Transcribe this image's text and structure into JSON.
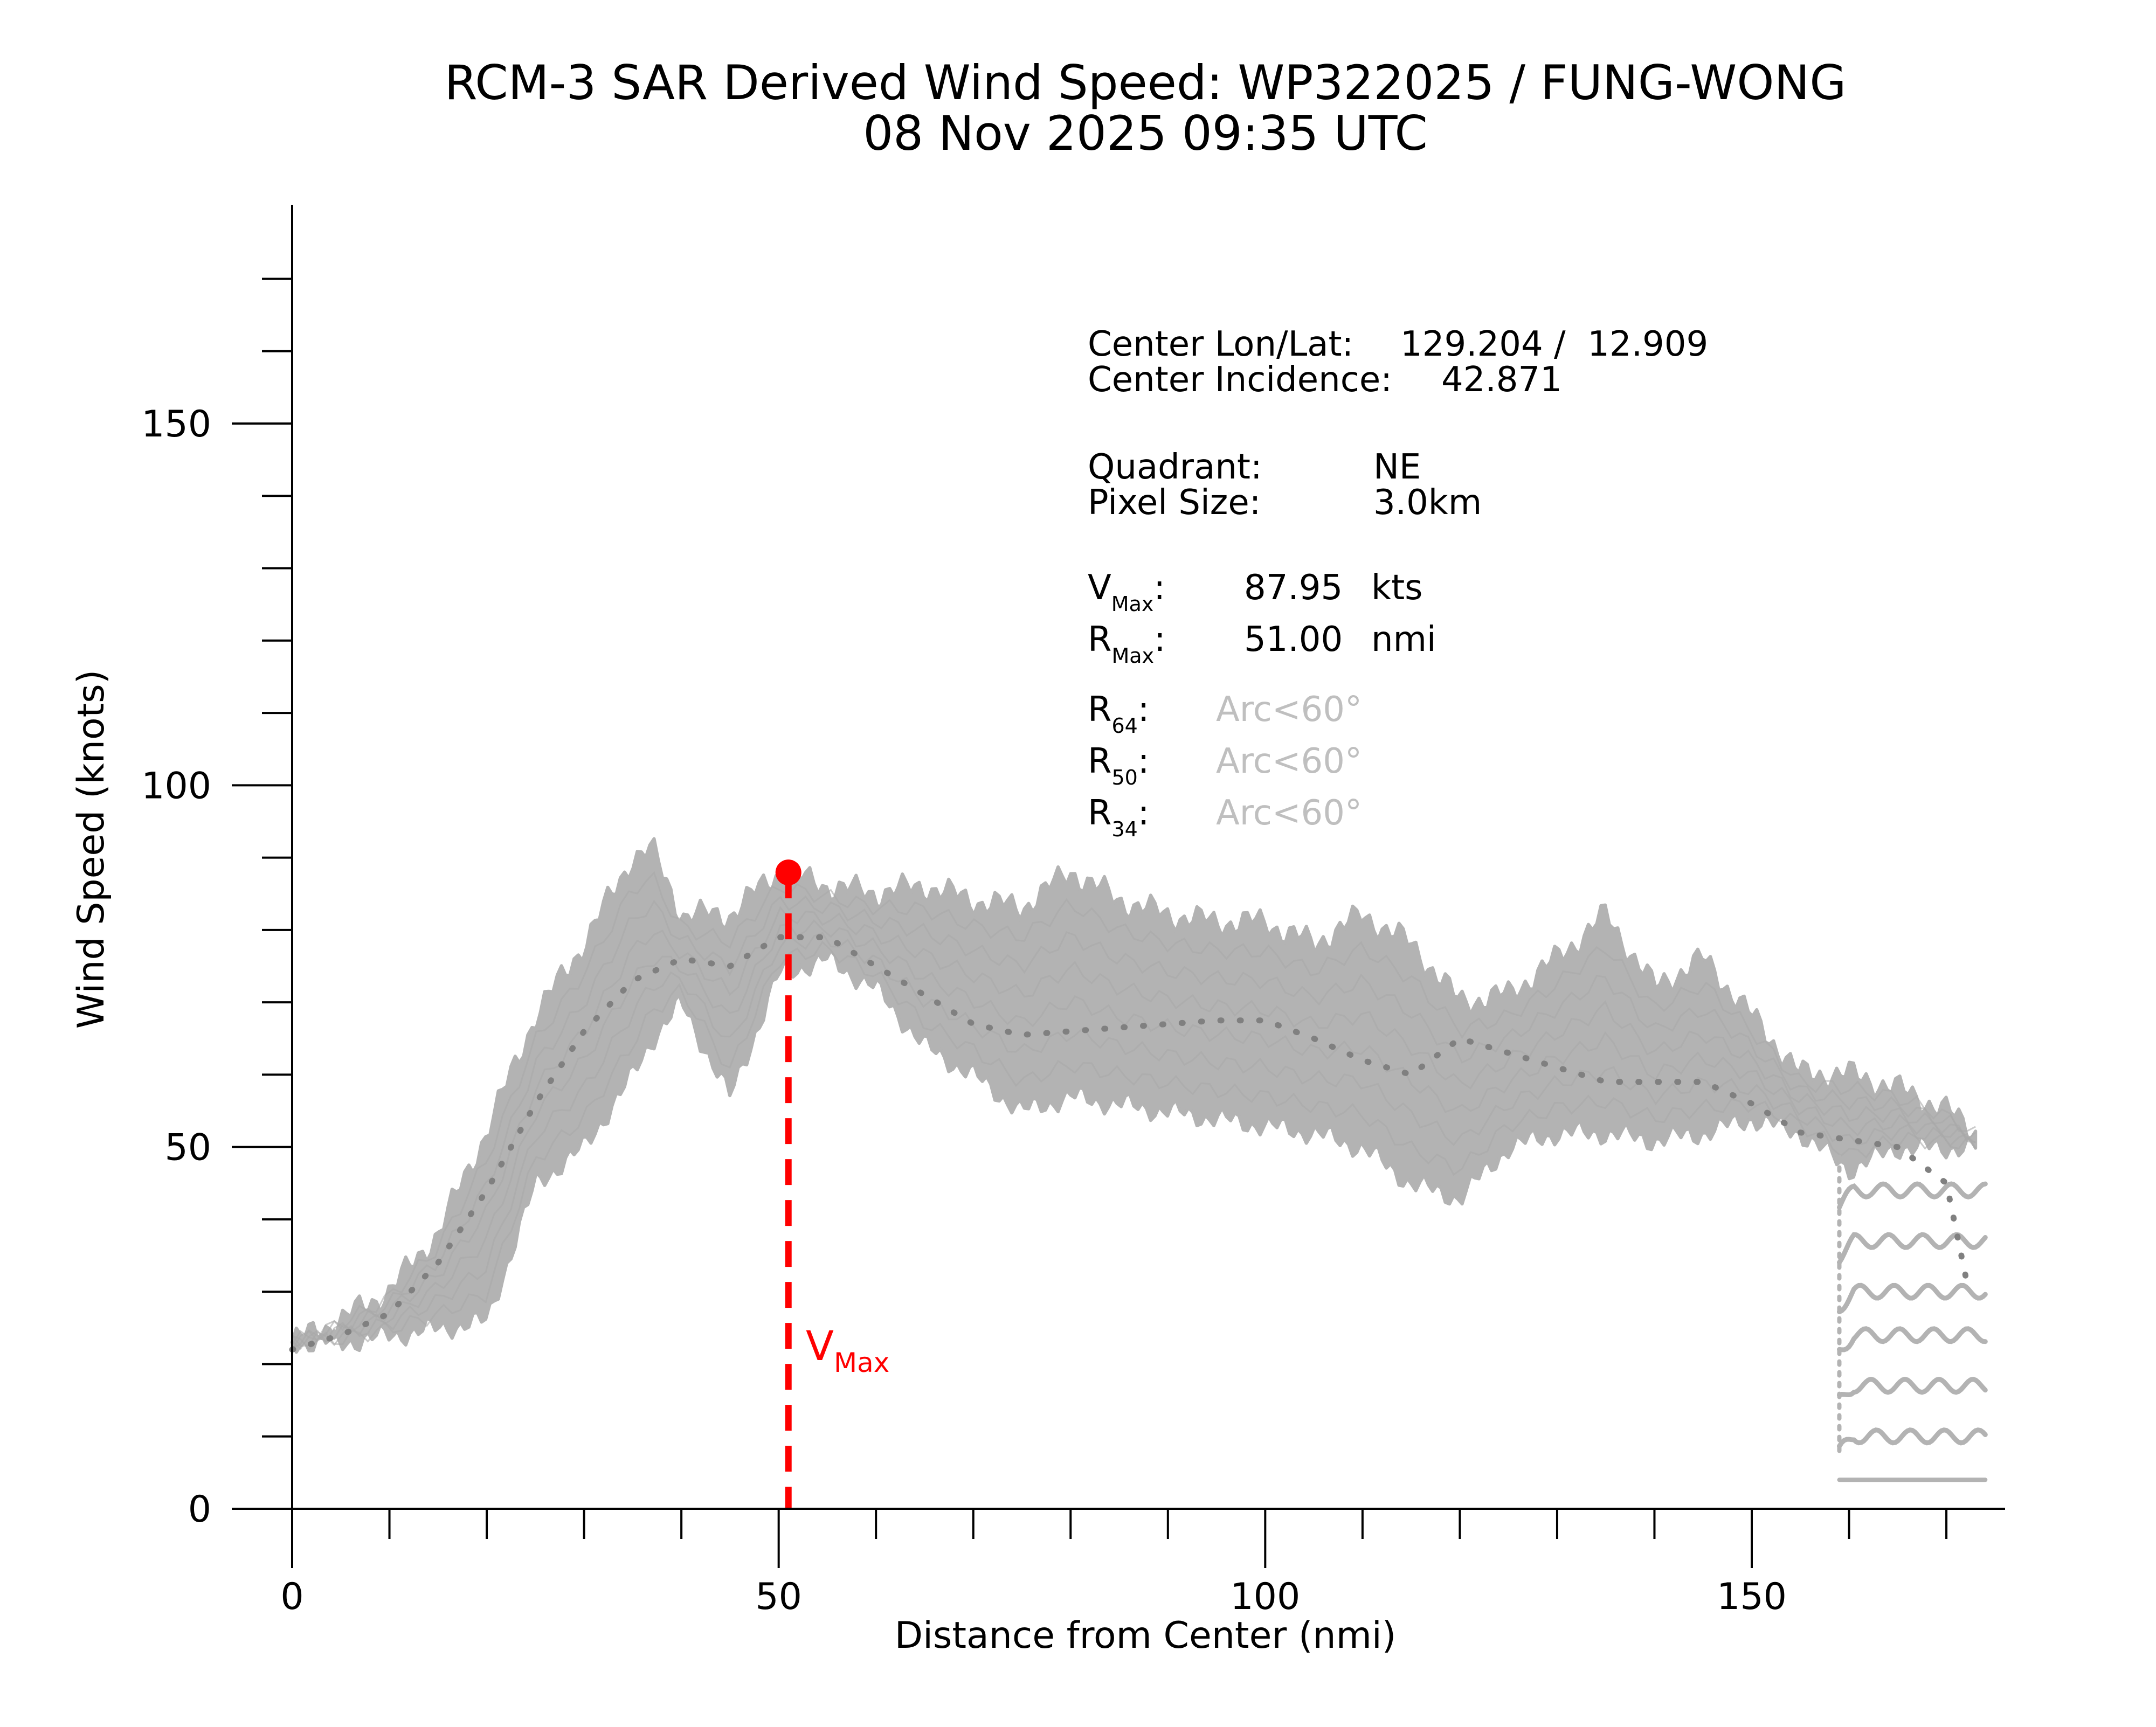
{
  "chart_data": {
    "type": "scatter",
    "title": "RCM-3 SAR Derived Wind Speed: WP322025 / FUNG-WONG",
    "subtitle": "08 Nov 2025 09:35 UTC",
    "xlabel": "Distance from Center (nmi)",
    "ylabel": "Wind Speed (knots)",
    "xlim": [
      -6.5,
      176
    ],
    "ylim": [
      -6.5,
      180
    ],
    "x_ticks": [
      0,
      50,
      100,
      150
    ],
    "x_tick_labels": [
      "0",
      "50",
      "100",
      "150"
    ],
    "y_ticks": [
      0,
      50,
      100,
      150
    ],
    "y_tick_labels": [
      "0",
      "50",
      "100",
      "150"
    ],
    "colors": {
      "scatter": "#b3b3b3",
      "mean": "#808080",
      "vmax": "#ff0000",
      "axes": "#000000",
      "arc_text": "#bfbfbf"
    },
    "scatter_envelope": {
      "x": [
        0,
        5,
        10,
        15,
        20,
        25,
        30,
        35,
        37,
        40,
        45,
        50,
        55,
        60,
        65,
        70,
        75,
        80,
        85,
        90,
        95,
        100,
        105,
        110,
        115,
        120,
        125,
        130,
        135,
        140,
        145,
        150,
        155,
        160,
        165,
        170,
        173
      ],
      "low": [
        23,
        23,
        24,
        25,
        26,
        45,
        50,
        60,
        65,
        70,
        57,
        74,
        76,
        72,
        64,
        60,
        55,
        57,
        56,
        55,
        54,
        53,
        52,
        50,
        45,
        43,
        50,
        52,
        52,
        51,
        52,
        54,
        52,
        47,
        50,
        50,
        50
      ],
      "high": [
        23,
        26,
        30,
        38,
        52,
        68,
        78,
        90,
        91,
        82,
        82,
        88,
        86,
        85,
        86,
        84,
        83,
        88,
        84,
        82,
        81,
        81,
        78,
        82,
        78,
        70,
        71,
        76,
        82,
        72,
        76,
        68,
        60,
        60,
        58,
        55,
        52
      ]
    },
    "mean_profile": {
      "x": [
        0,
        5,
        10,
        15,
        20,
        25,
        30,
        35,
        40,
        45,
        50,
        55,
        60,
        65,
        70,
        75,
        80,
        85,
        90,
        95,
        100,
        105,
        110,
        115,
        120,
        125,
        130,
        135,
        140,
        145,
        150,
        155,
        160,
        165,
        170,
        172
      ],
      "y": [
        22,
        24,
        27,
        34,
        44,
        56,
        66,
        73,
        76,
        75,
        79,
        79,
        75,
        71,
        67,
        65.5,
        66,
        66.5,
        67,
        67.5,
        67.5,
        65,
        62,
        60,
        65,
        63,
        61,
        59,
        59,
        59,
        56,
        52,
        51,
        50,
        45,
        32
      ]
    },
    "bottom_rows": {
      "x_start": 159,
      "x_end": 174,
      "levels": [
        4,
        10,
        17,
        24,
        30,
        37,
        44
      ]
    },
    "vmax_marker": {
      "x": 51.0,
      "y": 87.95,
      "label_main": "V",
      "label_sub": "Max"
    },
    "info": {
      "center_lonlat_label": "Center Lon/Lat:",
      "center_lonlat_value": "129.204 /  12.909",
      "center_incidence_label": "Center Incidence:",
      "center_incidence_value": "42.871",
      "quadrant_label": "Quadrant:",
      "quadrant_value": "NE",
      "pixel_size_label": "Pixel Size:",
      "pixel_size_value": "3.0km",
      "vmax_main": "V",
      "vmax_sub": "Max",
      "vmax_value": "87.95",
      "vmax_unit": "kts",
      "rmax_main": "R",
      "rmax_sub": "Max",
      "rmax_value": "51.00",
      "rmax_unit": "nmi",
      "r64_main": "R",
      "r64_sub": "64",
      "r64_value": "Arc<60°",
      "r50_main": "R",
      "r50_sub": "50",
      "r50_value": "Arc<60°",
      "r34_main": "R",
      "r34_sub": "34",
      "r34_value": "Arc<60°",
      "colon": ":"
    }
  }
}
